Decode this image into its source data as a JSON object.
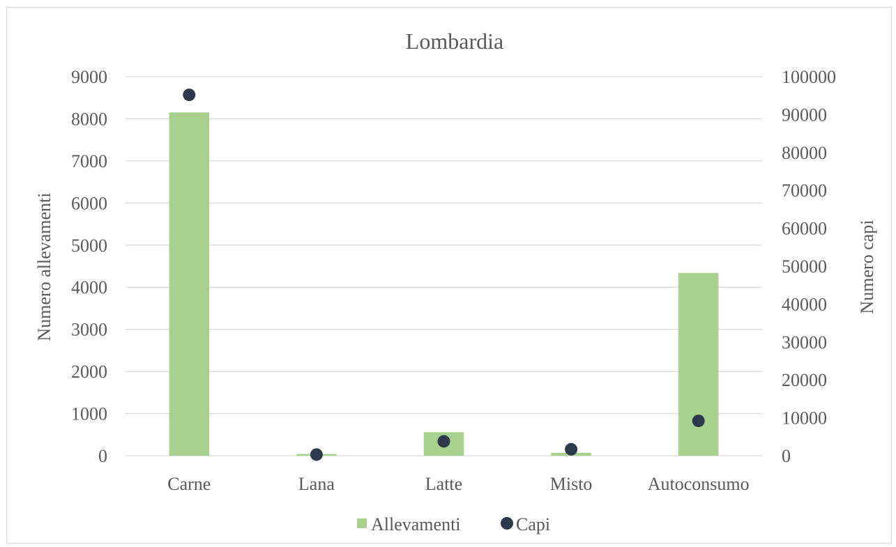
{
  "chart_data": {
    "type": "bar",
    "title": "Lombardia",
    "categories": [
      "Carne",
      "Lana",
      "Latte",
      "Misto",
      "Autoconsumo"
    ],
    "series": [
      {
        "name": "Allevamenti",
        "type": "bar",
        "axis": "left",
        "color": "#a9d18e",
        "values": [
          8150,
          40,
          560,
          70,
          4340
        ]
      },
      {
        "name": "Capi",
        "type": "scatter",
        "axis": "right",
        "color": "#2d3a4b",
        "values": [
          95200,
          300,
          3800,
          1700,
          9200
        ]
      }
    ],
    "ylabel": "Numero allevamenti",
    "ylim": [
      0,
      9000
    ],
    "yticks": [
      "0",
      "1000",
      "2000",
      "3000",
      "4000",
      "5000",
      "6000",
      "7000",
      "8000",
      "9000"
    ],
    "y2label": "Numero capi",
    "y2lim": [
      0,
      100000
    ],
    "y2ticks": [
      "0",
      "10000",
      "20000",
      "30000",
      "40000",
      "50000",
      "60000",
      "70000",
      "80000",
      "90000",
      "100000"
    ],
    "grid": true,
    "legend_position": "bottom"
  }
}
